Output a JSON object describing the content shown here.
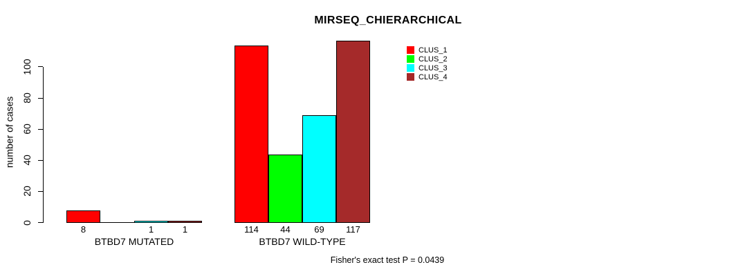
{
  "chart_data": {
    "type": "bar",
    "title": "MIRSEQ_CHIERARCHICAL",
    "ylabel": "number of cases",
    "footer": "Fisher's exact test P = 0.0439",
    "categories": [
      "BTBD7 MUTATED",
      "BTBD7 WILD-TYPE"
    ],
    "series": [
      {
        "name": "CLUS_1",
        "color": "#FF0000",
        "values": [
          8,
          114
        ]
      },
      {
        "name": "CLUS_2",
        "color": "#00FF00",
        "values": [
          0,
          44
        ]
      },
      {
        "name": "CLUS_3",
        "color": "#00FFFF",
        "values": [
          1,
          69
        ]
      },
      {
        "name": "CLUS_4",
        "color": "#A52A2A",
        "values": [
          1,
          117
        ]
      }
    ],
    "bar_value_labels": [
      [
        "8",
        "",
        "1",
        "1"
      ],
      [
        "114",
        "44",
        "69",
        "117"
      ]
    ],
    "yticks": [
      0,
      20,
      40,
      60,
      80,
      100
    ],
    "ylim": [
      0,
      117
    ],
    "grid": false,
    "legend_position": "top-right",
    "legend": [
      "CLUS_1",
      "CLUS_2",
      "CLUS_3",
      "CLUS_4"
    ],
    "background": "#FFFFFF",
    "axis_color": "#000000"
  }
}
